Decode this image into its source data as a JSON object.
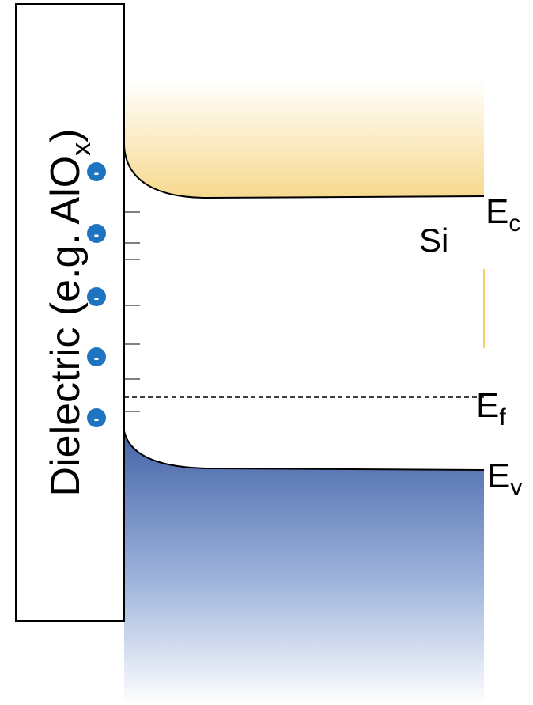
{
  "dielectric": {
    "label": "Dielectric (e.g. AlO",
    "subscript": "x",
    "suffix": ")"
  },
  "material": "Si",
  "charges": [
    "-",
    "-",
    "-",
    "-",
    "-"
  ],
  "levels": {
    "conduction": {
      "symbol": "E",
      "subscript": "c"
    },
    "fermi": {
      "symbol": "E",
      "subscript": "f"
    },
    "valence": {
      "symbol": "E",
      "subscript": "v"
    }
  }
}
